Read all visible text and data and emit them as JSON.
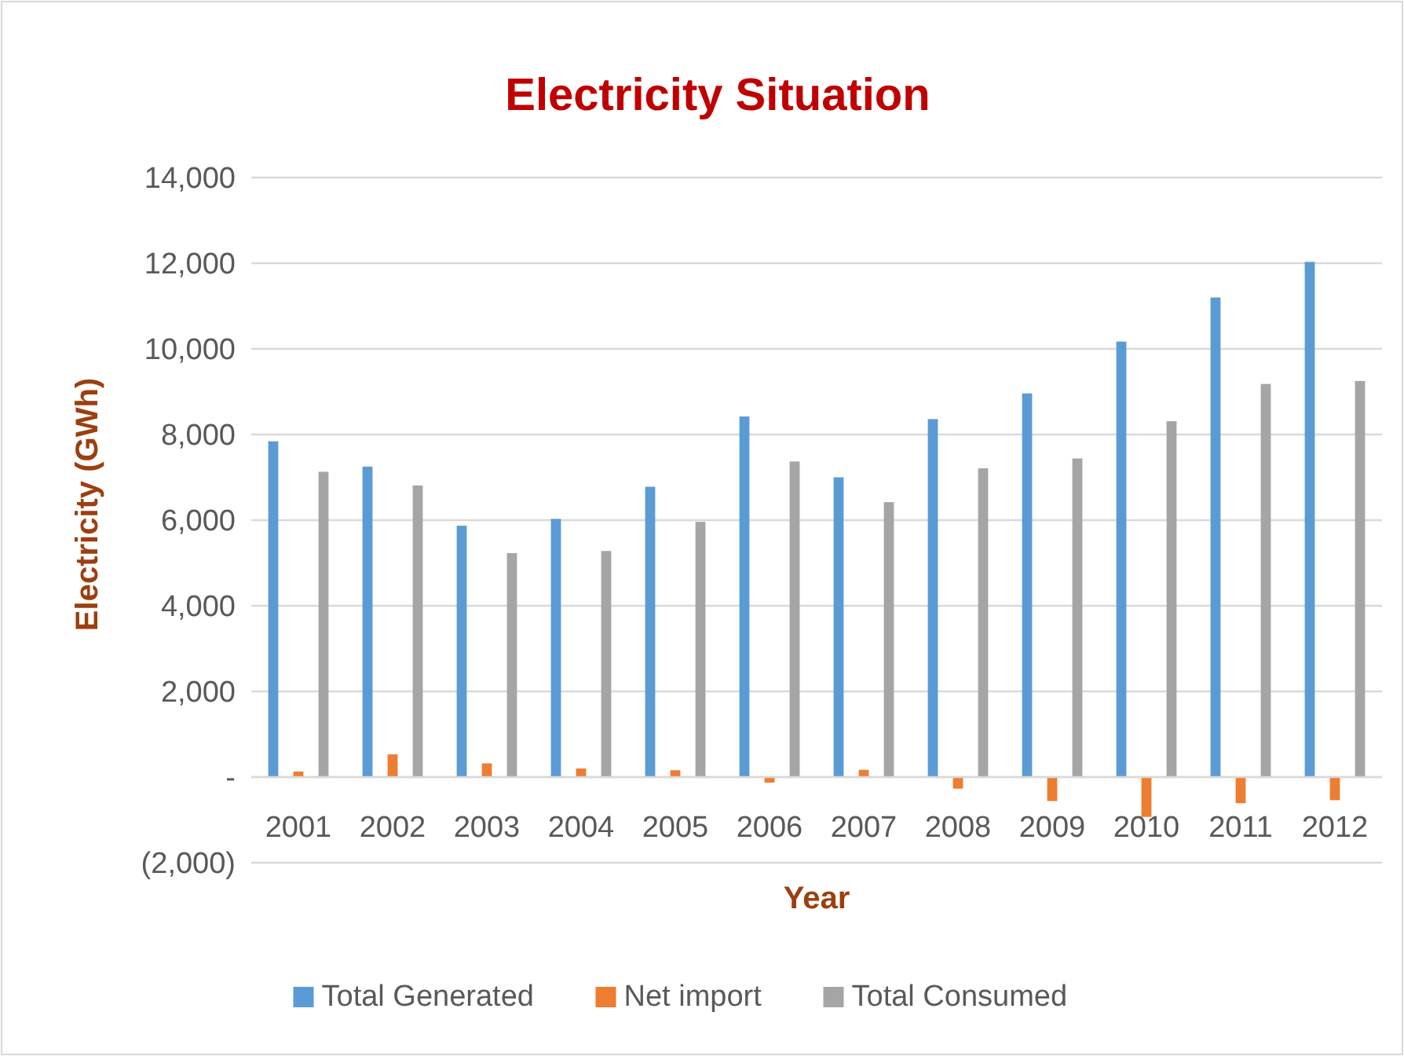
{
  "chart_data": {
    "type": "bar",
    "title": "Electricity Situation",
    "xlabel": "Year",
    "ylabel": "Electricity (GWh)",
    "categories": [
      "2001",
      "2002",
      "2003",
      "2004",
      "2005",
      "2006",
      "2007",
      "2008",
      "2009",
      "2010",
      "2011",
      "2012"
    ],
    "series": [
      {
        "name": "Total Generated",
        "color": "#5b9bd5",
        "values": [
          7840,
          7250,
          5870,
          6030,
          6780,
          8420,
          7000,
          8360,
          8960,
          10170,
          11200,
          12030
        ]
      },
      {
        "name": "Net import",
        "color": "#ed7d31",
        "values": [
          130,
          530,
          320,
          200,
          160,
          -130,
          170,
          -270,
          -560,
          -930,
          -610,
          -540
        ]
      },
      {
        "name": "Total Consumed",
        "color": "#a5a5a5",
        "values": [
          7130,
          6810,
          5230,
          5280,
          5960,
          7370,
          6420,
          7210,
          7440,
          8310,
          9180,
          9250
        ]
      }
    ],
    "ylim": [
      -2000,
      14000
    ],
    "yticks": [
      {
        "value": -2000,
        "label": "(2,000)"
      },
      {
        "value": 0,
        "label": "-"
      },
      {
        "value": 2000,
        "label": "2,000"
      },
      {
        "value": 4000,
        "label": "4,000"
      },
      {
        "value": 6000,
        "label": "6,000"
      },
      {
        "value": 8000,
        "label": "8,000"
      },
      {
        "value": 10000,
        "label": "10,000"
      },
      {
        "value": 12000,
        "label": "12,000"
      },
      {
        "value": 14000,
        "label": "14,000"
      }
    ],
    "grid": "y",
    "legend": "bottom"
  }
}
